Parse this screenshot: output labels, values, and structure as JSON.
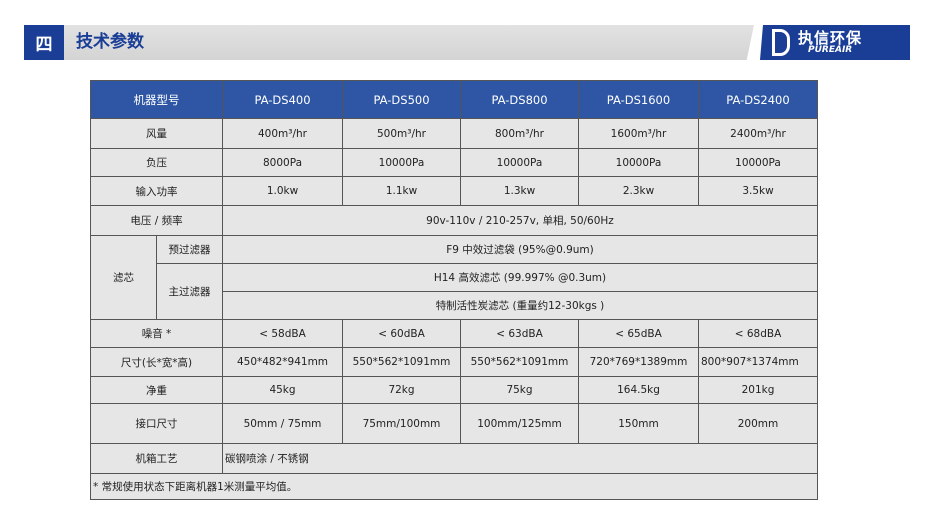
{
  "header": {
    "section_number": "四",
    "title": "技术参数",
    "logo_cn": "执信环保",
    "logo_en": "PUREAIR"
  },
  "table": {
    "headers": [
      "机器型号",
      "PA-DS400",
      "PA-DS500",
      "PA-DS800",
      "PA-DS1600",
      "PA-DS2400"
    ],
    "airflow": {
      "label": "风量",
      "values": [
        "400m³/hr",
        "500m³/hr",
        "800m³/hr",
        "1600m³/hr",
        "2400m³/hr"
      ]
    },
    "pressure": {
      "label": "负压",
      "values": [
        "8000Pa",
        "10000Pa",
        "10000Pa",
        "10000Pa",
        "10000Pa"
      ]
    },
    "power": {
      "label": "输入功率",
      "values": [
        "1.0kw",
        "1.1kw",
        "1.3kw",
        "2.3kw",
        "3.5kw"
      ]
    },
    "voltage": {
      "label": "电压 / 频率",
      "value": "90v-110v / 210-257v, 单相, 50/60Hz"
    },
    "filter": {
      "label": "滤芯",
      "pre_label": "预过滤器",
      "pre_value": "F9 中效过滤袋 (95%@0.9um)",
      "main_label": "主过滤器",
      "main_values": [
        "H14 高效滤芯 (99.997% @0.3um)",
        "特制活性炭滤芯 (重量约12-30kgs )"
      ]
    },
    "noise": {
      "label": "噪音 *",
      "values": [
        "< 58dBA",
        "< 60dBA",
        "< 63dBA",
        "< 65dBA",
        "< 68dBA"
      ]
    },
    "size": {
      "label": "尺寸(长*宽*高)",
      "values": [
        "450*482*941mm",
        "550*562*1091mm",
        "550*562*1091mm",
        "720*769*1389mm",
        "800*907*1374mm"
      ]
    },
    "weight": {
      "label": "净重",
      "values": [
        "45kg",
        "72kg",
        "75kg",
        "164.5kg",
        "201kg"
      ]
    },
    "port": {
      "label": "接口尺寸",
      "values": [
        "50mm / 75mm",
        "75mm/100mm",
        "100mm/125mm",
        "150mm",
        "200mm"
      ]
    },
    "cabinet": {
      "label": "机箱工艺",
      "value": "碳钢喷涂 / 不锈钢"
    },
    "footnote": "* 常规使用状态下距离机器1米测量平均值。"
  }
}
